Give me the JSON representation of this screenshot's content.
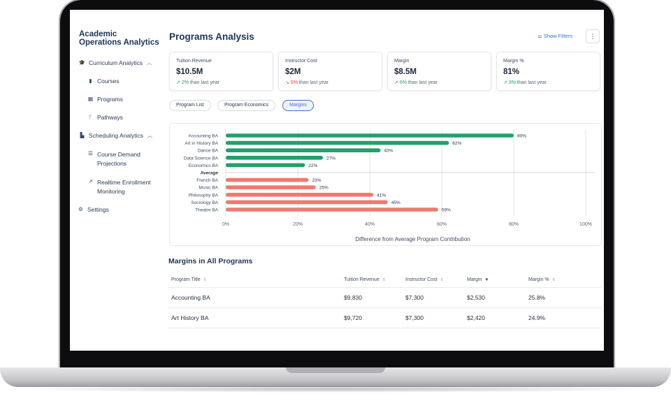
{
  "app": {
    "title": "Academic Operations Analytics"
  },
  "sidebar": {
    "items": [
      {
        "label": "Curriculum Analytics",
        "icon": "graduation-cap-icon",
        "expanded": true
      },
      {
        "label": "Courses",
        "icon": "book-icon"
      },
      {
        "label": "Programs",
        "icon": "grid-icon"
      },
      {
        "label": "Pathways",
        "icon": "branch-icon"
      },
      {
        "label": "Scheduling Analytics",
        "icon": "bar-chart-icon",
        "expanded": true
      },
      {
        "label": "Course Demand Projections",
        "icon": "list-icon"
      },
      {
        "label": "Realtime Enrollment Monitoring",
        "icon": "trend-icon"
      },
      {
        "label": "Settings",
        "icon": "gear-icon"
      }
    ]
  },
  "header": {
    "title": "Programs Analysis",
    "filters_label": "Show Filters",
    "more_icon": "more-vertical-icon"
  },
  "kpis": [
    {
      "label": "Tuition Revenue",
      "value": "$10.5M",
      "delta": "2%",
      "direction": "up",
      "suffix": "than last year"
    },
    {
      "label": "Instructor Cost",
      "value": "$2M",
      "delta": "5%",
      "direction": "down",
      "suffix": "than last year"
    },
    {
      "label": "Margin",
      "value": "$8.5M",
      "delta": "6%",
      "direction": "up",
      "suffix": "than last year"
    },
    {
      "label": "Margin %",
      "value": "81%",
      "delta": "3%",
      "direction": "up",
      "suffix": "than last year"
    }
  ],
  "tabs": [
    {
      "label": "Program List",
      "active": false
    },
    {
      "label": "Program Economics",
      "active": false
    },
    {
      "label": "Margins",
      "active": true
    }
  ],
  "chart_data": {
    "type": "bar",
    "orientation": "horizontal",
    "xlabel": "Difference from Average Program Contribution",
    "xlim": [
      0,
      100
    ],
    "x_ticks": [
      "0%",
      "20%",
      "40%",
      "60%",
      "80%",
      "100%"
    ],
    "divider_label": "Average",
    "colors": {
      "above": "#22a06b",
      "below": "#f07a70"
    },
    "grid": true,
    "categories": [
      "Accounting BA",
      "Art in History BA",
      "Dance BA",
      "Data Science BA",
      "Economics BA",
      "French BA",
      "Music BA",
      "Philosophy BA",
      "Sociology BA",
      "Theatre BA"
    ],
    "values": [
      80,
      62,
      43,
      27,
      22,
      23,
      25,
      41,
      45,
      59
    ],
    "groups": [
      "above",
      "above",
      "above",
      "above",
      "above",
      "below",
      "below",
      "below",
      "below",
      "below"
    ],
    "value_labels": [
      "80%",
      "62%",
      "43%",
      "27%",
      "22%",
      "23%",
      "25%",
      "41%",
      "45%",
      "59%"
    ]
  },
  "table": {
    "title": "Margins in All Programs",
    "columns": [
      "Program Title",
      "Tuition Revenue",
      "Instructor Cost",
      "Margin",
      "Margin %"
    ],
    "sorted_column": "Margin",
    "rows": [
      [
        "Accounting BA",
        "$9,830",
        "$7,300",
        "$2,530",
        "25.8%"
      ],
      [
        "Art History BA",
        "$9,720",
        "$7,300",
        "$2,420",
        "24.9%"
      ]
    ]
  }
}
